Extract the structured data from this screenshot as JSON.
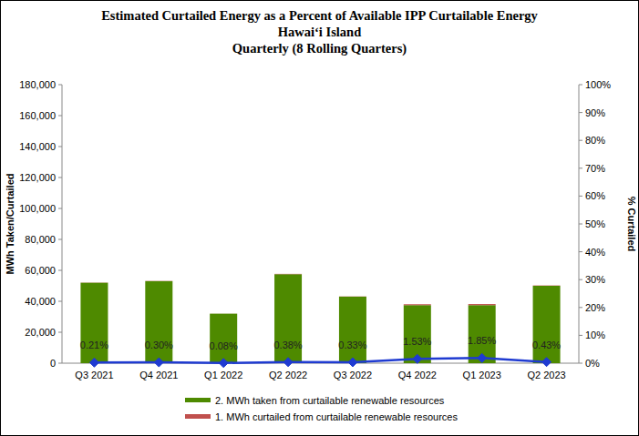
{
  "chart_data": {
    "type": "bar",
    "title": "Estimated Curtailed  Energy  as a Percent of Available IPP Curtailable  Energy",
    "subtitle": [
      "Hawaiʻi Island",
      "Quarterly (8 Rolling Quarters)"
    ],
    "y_label": "MWh Taken/Curtailed",
    "y2_label": "% Curtailed",
    "categories": [
      "Q3 2021",
      "Q4 2021",
      "Q1 2022",
      "Q2 2022",
      "Q3 2022",
      "Q4 2022",
      "Q1 2023",
      "Q2 2023"
    ],
    "series": [
      {
        "name": "2. MWh taken from curtailable renewable resources",
        "type": "bar",
        "color": "#4e8a00",
        "values": [
          52000,
          53000,
          32000,
          57500,
          43000,
          37500,
          37500,
          50000
        ]
      },
      {
        "name": "1. MWh curtailed from curtailable renewable resources",
        "type": "bar",
        "color": "#c0504d",
        "values": [
          110,
          160,
          26,
          220,
          142,
          580,
          700,
          215
        ]
      },
      {
        "type": "line",
        "axis": "y2",
        "color": "#1f3bd1",
        "marker": "diamond",
        "line_style": "solid",
        "data_labels": true,
        "values": [
          0.21,
          0.3,
          0.08,
          0.38,
          0.33,
          1.53,
          1.85,
          0.43
        ],
        "value_labels": [
          "0.21%",
          "0.30%",
          "0.08%",
          "0.38%",
          "0.33%",
          "1.53%",
          "1.85%",
          "0.43%"
        ]
      }
    ],
    "stacked": true,
    "grid": false,
    "legend": "bottom",
    "ylim": [
      0,
      180000
    ],
    "yticks": [
      0,
      {
        "value": 20000,
        "label": "20,000"
      },
      {
        "value": 40000,
        "label": "40,000"
      },
      {
        "value": 60000,
        "label": "60,000"
      },
      {
        "value": 80000,
        "label": "80,000"
      },
      {
        "value": 100000,
        "label": "100,000"
      },
      {
        "value": 120000,
        "label": "120,000"
      },
      {
        "value": 140000,
        "label": "140,000"
      },
      {
        "value": 160000,
        "label": "160,000"
      },
      {
        "value": 180000,
        "label": "180,000"
      }
    ],
    "y2lim": [
      0,
      100
    ],
    "y2ticks": [
      {
        "value": 0,
        "label": "0%"
      },
      {
        "value": 10,
        "label": "10%"
      },
      {
        "value": 20,
        "label": "20%"
      },
      {
        "value": 30,
        "label": "30%"
      },
      {
        "value": 40,
        "label": "40%"
      },
      {
        "value": 50,
        "label": "50%"
      },
      {
        "value": 60,
        "label": "60%"
      },
      {
        "value": 70,
        "label": "70%"
      },
      {
        "value": 80,
        "label": "80%"
      },
      {
        "value": 90,
        "label": "90%"
      },
      {
        "value": 100,
        "label": "100%"
      }
    ]
  }
}
